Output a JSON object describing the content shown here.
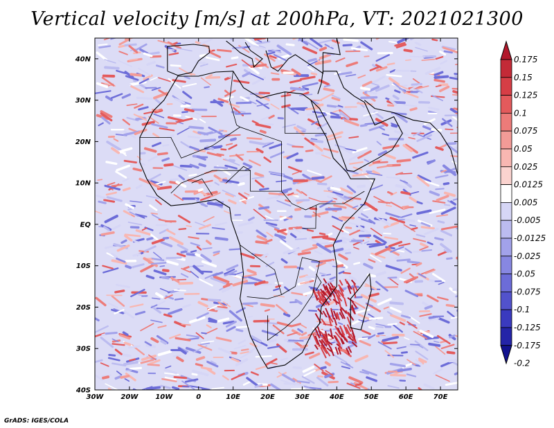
{
  "title": "Vertical velocity [m/s] at 200hPa, VT: 2021021300",
  "credit": "GrADS: IGES/COLA",
  "map": {
    "lat_labels": [
      "40N",
      "30N",
      "20N",
      "10N",
      "EQ",
      "10S",
      "20S",
      "30S",
      "40S"
    ],
    "lon_labels": [
      "30W",
      "20W",
      "10W",
      "0",
      "10E",
      "20E",
      "30E",
      "40E",
      "50E",
      "60E",
      "70E"
    ],
    "lat_range": [
      -40,
      45
    ],
    "lon_range": [
      -30,
      75
    ]
  },
  "colorbar": {
    "labels": [
      "0.175",
      "0.15",
      "0.125",
      "0.1",
      "0.075",
      "0.05",
      "0.025",
      "0.0125",
      "0.005",
      "-0.005",
      "-0.0125",
      "-0.025",
      "-0.05",
      "-0.075",
      "-0.1",
      "-0.125",
      "-0.175",
      "-0.2"
    ],
    "colors": [
      "#b2182b",
      "#c32a37",
      "#d63e46",
      "#e35a5c",
      "#ec7b79",
      "#f39b97",
      "#f8b7b2",
      "#fbd3cf",
      "#ffffff",
      "#d6d6f6",
      "#bcbcf0",
      "#a2a2ea",
      "#8787e2",
      "#6c6cd8",
      "#5252cc",
      "#3a3abf",
      "#2424a8",
      "#12128f"
    ]
  },
  "colors": {
    "positive": "#d9534f",
    "negative": "#6a6ad8",
    "coastline": "#000000"
  }
}
